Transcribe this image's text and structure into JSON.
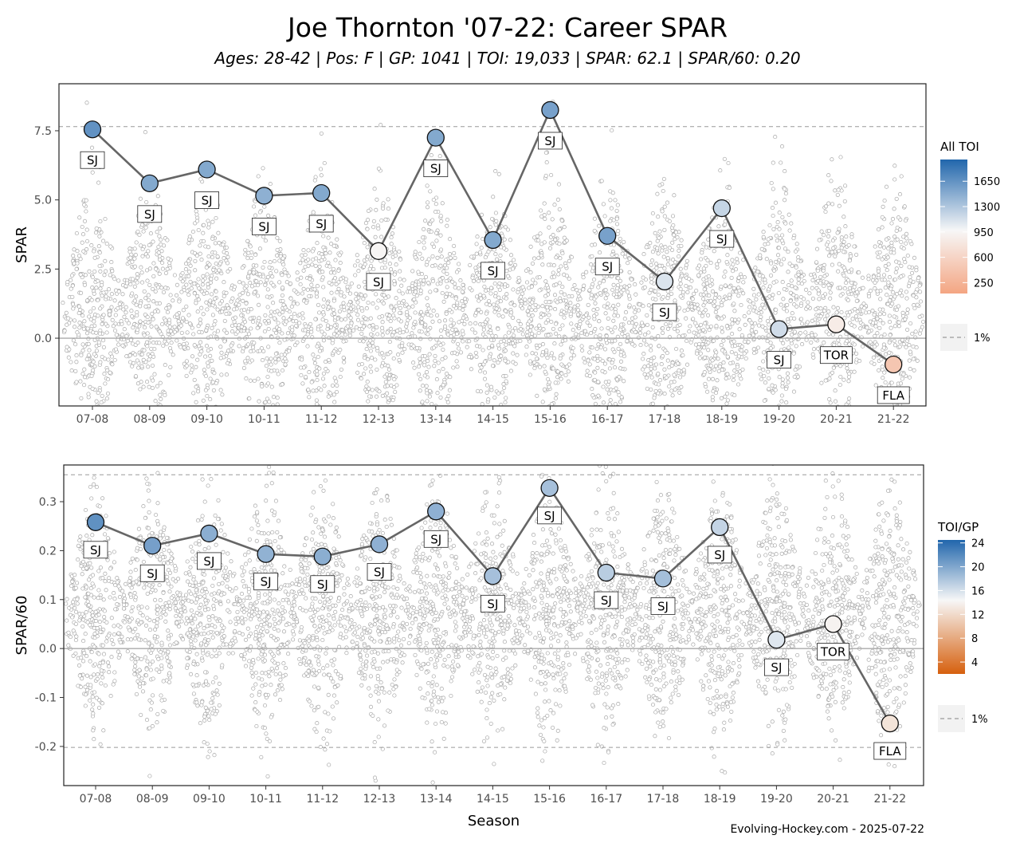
{
  "title": "Joe Thornton '07-22: Career SPAR",
  "subtitle": "Ages: 28-42 | Pos: F | GP: 1041 | TOI: 19,033 | SPAR: 62.1 | SPAR/60: 0.20",
  "caption": "Evolving-Hockey.com - 2025-07-22",
  "chart_data": [
    {
      "type": "scatter",
      "panel": "top",
      "xlabel": "",
      "ylabel": "SPAR",
      "categories": [
        "07-08",
        "08-09",
        "09-10",
        "10-11",
        "11-12",
        "12-13",
        "13-14",
        "14-15",
        "15-16",
        "16-17",
        "17-18",
        "18-19",
        "19-20",
        "20-21",
        "21-22"
      ],
      "values": [
        7.55,
        5.6,
        6.1,
        5.15,
        5.25,
        3.15,
        7.25,
        3.55,
        8.25,
        3.7,
        2.05,
        4.7,
        0.33,
        0.5,
        -0.95
      ],
      "teams": [
        "SJ",
        "SJ",
        "SJ",
        "SJ",
        "SJ",
        "SJ",
        "SJ",
        "SJ",
        "SJ",
        "SJ",
        "SJ",
        "SJ",
        "SJ",
        "TOR",
        "FLA"
      ],
      "color_values": [
        1650,
        1500,
        1500,
        1450,
        1500,
        950,
        1500,
        1500,
        1550,
        1550,
        1100,
        1200,
        1150,
        850,
        450
      ],
      "ylim": [
        -2.45,
        9.2
      ],
      "yticks": [
        0.0,
        2.5,
        5.0,
        7.5
      ],
      "ytick_labels": [
        "0.0",
        "2.5",
        "5.0",
        "7.5"
      ],
      "reference_lines": [
        {
          "value": 7.65,
          "style": "dashed"
        },
        {
          "value": 0,
          "style": "solid"
        }
      ],
      "legend": {
        "title": "All TOI",
        "placement": "right",
        "ticks": [
          1650,
          1300,
          950,
          600,
          250
        ],
        "tick_labels": [
          "1650",
          "1300",
          "950",
          "600",
          "250"
        ],
        "range": [
          100,
          1950
        ],
        "colors": [
          "#f4a582",
          "#f7f7f7",
          "#2166ac"
        ]
      },
      "line_legend": "1%",
      "grid": false
    },
    {
      "type": "scatter",
      "panel": "bottom",
      "xlabel": "Season",
      "ylabel": "SPAR/60",
      "categories": [
        "07-08",
        "08-09",
        "09-10",
        "10-11",
        "11-12",
        "12-13",
        "13-14",
        "14-15",
        "15-16",
        "16-17",
        "17-18",
        "18-19",
        "19-20",
        "20-21",
        "21-22"
      ],
      "values": [
        0.258,
        0.21,
        0.235,
        0.193,
        0.188,
        0.213,
        0.28,
        0.148,
        0.328,
        0.155,
        0.143,
        0.248,
        0.018,
        0.05,
        -0.153
      ],
      "teams": [
        "SJ",
        "SJ",
        "SJ",
        "SJ",
        "SJ",
        "SJ",
        "SJ",
        "SJ",
        "SJ",
        "SJ",
        "SJ",
        "SJ",
        "SJ",
        "TOR",
        "FLA"
      ],
      "color_values": [
        21.5,
        20.5,
        19.5,
        19.2,
        19.5,
        19.3,
        19.3,
        18.2,
        18.2,
        17.3,
        18.3,
        16.8,
        15.5,
        14.0,
        12.8
      ],
      "ylim": [
        -0.28,
        0.375
      ],
      "yticks": [
        -0.2,
        -0.1,
        0.0,
        0.1,
        0.2,
        0.3
      ],
      "ytick_labels": [
        "-0.2",
        "-0.1",
        "0.0",
        "0.1",
        "0.2",
        "0.3"
      ],
      "reference_lines": [
        {
          "value": 0.355,
          "style": "dashed"
        },
        {
          "value": -0.202,
          "style": "dashed"
        },
        {
          "value": 0,
          "style": "solid"
        }
      ],
      "legend": {
        "title": "TOI/GP",
        "placement": "right",
        "ticks": [
          24,
          20,
          16,
          12,
          8,
          4
        ],
        "tick_labels": [
          "24",
          "20",
          "16",
          "12",
          "8",
          "4"
        ],
        "range": [
          2,
          24.5
        ],
        "colors": [
          "#d6600e",
          "#f7f7f7",
          "#2166ac"
        ]
      },
      "line_legend": "1%",
      "grid": false
    }
  ]
}
